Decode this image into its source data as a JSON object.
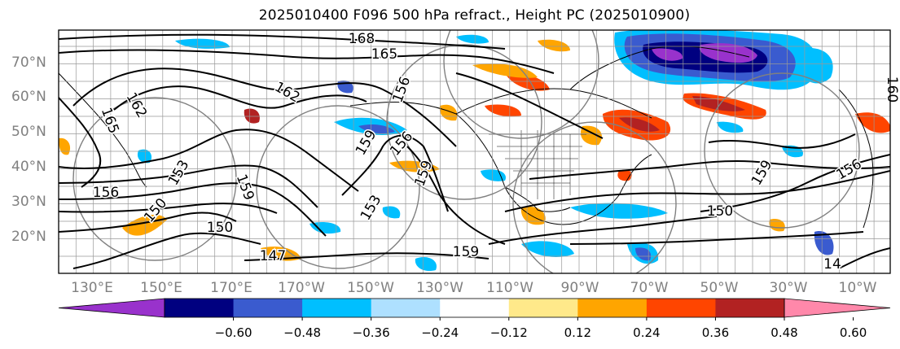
{
  "title": "2025010400 F096 500 hPa refract., Height PC (2025010900)",
  "lat_labels": [
    "70°N",
    "60°N",
    "50°N",
    "40°N",
    "30°N",
    "20°N"
  ],
  "lon_labels": [
    "130°E",
    "150°E",
    "170°E",
    "170°W",
    "150°W",
    "130°W",
    "110°W",
    "90°W",
    "70°W",
    "50°W",
    "30°W",
    "10°W"
  ],
  "contour_labels": [
    "168",
    "165",
    "162",
    "162",
    "165",
    "156",
    "153",
    "156",
    "150",
    "150",
    "147",
    "159",
    "159",
    "159",
    "156",
    "153",
    "159",
    "150",
    "159",
    "156",
    "14",
    "160"
  ],
  "colorbar": {
    "ticks": [
      "−0.60",
      "−0.48",
      "−0.36",
      "−0.24",
      "−0.12",
      "0.12",
      "0.24",
      "0.36",
      "0.48",
      "0.60"
    ],
    "colors": [
      "#9932cc",
      "#000080",
      "#3a5bcf",
      "#00bfff",
      "#aee0ff",
      "#ffffff",
      "#ffe98a",
      "#ffa500",
      "#ff4500",
      "#b22222",
      "#ff88aa"
    ]
  },
  "colors": {
    "frame": "#000000",
    "grid": "#999999",
    "axis_text": "#808080",
    "contour": "#000000"
  }
}
